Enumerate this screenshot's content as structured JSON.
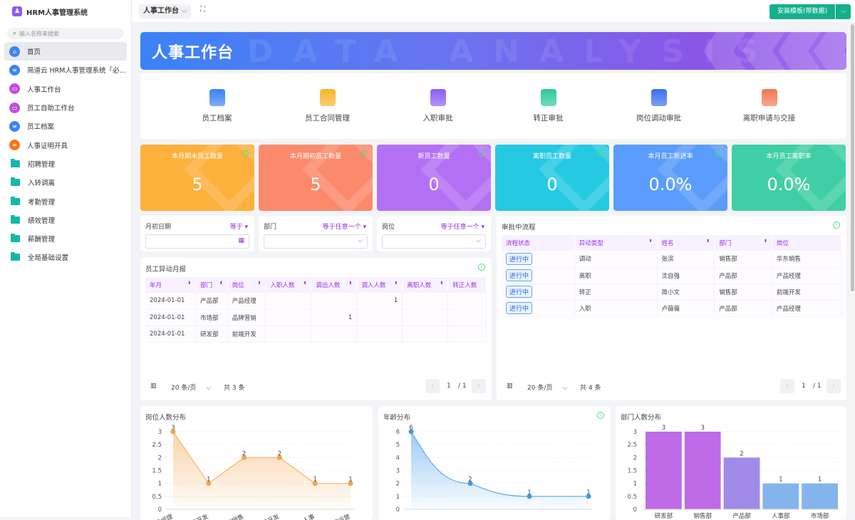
{
  "app": {
    "title": "HRM人事管理系统",
    "search_placeholder": "输入名称来搜索"
  },
  "sidebar": {
    "items": [
      {
        "label": "首页",
        "icon": "home-icon",
        "color": "#3b82f6",
        "active": true
      },
      {
        "label": "简道云 HRM人事管理系统「必...",
        "icon": "document-icon",
        "color": "#3b82f6"
      },
      {
        "label": "人事工作台",
        "icon": "dashboard-icon",
        "color": "#c04ee0"
      },
      {
        "label": "员工自助工作台",
        "icon": "dashboard-icon",
        "color": "#c04ee0"
      },
      {
        "label": "员工档案",
        "icon": "document-icon",
        "color": "#3b82f6"
      },
      {
        "label": "人事证明开具",
        "icon": "document-icon",
        "color": "#f97316"
      },
      {
        "label": "招聘管理",
        "icon": "folder-icon"
      },
      {
        "label": "入转调离",
        "icon": "folder-icon"
      },
      {
        "label": "考勤管理",
        "icon": "folder-icon"
      },
      {
        "label": "绩效管理",
        "icon": "folder-icon"
      },
      {
        "label": "薪酬管理",
        "icon": "folder-icon"
      },
      {
        "label": "全局基础设置",
        "icon": "folder-icon"
      }
    ]
  },
  "topbar": {
    "breadcrumb": "人事工作台",
    "install_label": "安装模板(带数据)"
  },
  "banner": {
    "title": "人事工作台",
    "watermark": "DATA ANALYSIS"
  },
  "shortcuts": [
    {
      "label": "员工档案",
      "color": "#3b82f6"
    },
    {
      "label": "员工合同管理",
      "color": "#f5b52b"
    },
    {
      "label": "入职审批",
      "color": "#8b5cf6"
    },
    {
      "label": "转正审批",
      "color": "#2cc9a0"
    },
    {
      "label": "岗位调动审批",
      "color": "#3b6ff0"
    },
    {
      "label": "离职申请与交接",
      "color": "#f07a52"
    }
  ],
  "stats": [
    {
      "label": "本月期末员工数量",
      "value": "5",
      "color": "#fdb03c"
    },
    {
      "label": "本月期初员工数量",
      "value": "5",
      "color": "#fb8a6c"
    },
    {
      "label": "新员工数量",
      "value": "0",
      "color": "#b470f4"
    },
    {
      "label": "离职员工数量",
      "value": "0",
      "color": "#26c9e2"
    },
    {
      "label": "本月员工新进率",
      "value": "0.0%",
      "color": "#5a9cfb"
    },
    {
      "label": "本月员工离职率",
      "value": "0.0%",
      "color": "#3fcfa4"
    }
  ],
  "filters": [
    {
      "label": "月初日期",
      "operator": "等于",
      "icon": "calendar-icon"
    },
    {
      "label": "部门",
      "operator": "等于任意一个",
      "icon": "chevron-down-icon"
    },
    {
      "label": "岗位",
      "operator": "等于任意一个",
      "icon": "chevron-down-icon"
    }
  ],
  "monthly_report": {
    "title": "员工异动月报",
    "columns": [
      "年月",
      "部门",
      "岗位",
      "入职人数",
      "调出人数",
      "调入人数",
      "离职人数",
      "转正人数"
    ],
    "rows": [
      [
        "2024-01-01",
        "产品部",
        "产品经理",
        "",
        "",
        "1",
        "",
        ""
      ],
      [
        "2024-01-01",
        "市场部",
        "品牌营销",
        "",
        "1",
        "",
        "",
        ""
      ],
      [
        "2024-01-01",
        "研发部",
        "前端开发",
        "",
        "",
        "",
        "",
        ""
      ]
    ],
    "page_size": "20 条/页",
    "total": "共 3 条",
    "page": "1",
    "pages": "/ 1"
  },
  "approvals": {
    "title": "审批中流程",
    "columns": [
      "流程状态",
      "异动类型",
      "姓名",
      "部门",
      "岗位"
    ],
    "rows": [
      [
        "进行中",
        "调动",
        "张滨",
        "销售部",
        "华东销售"
      ],
      [
        "进行中",
        "离职",
        "沈自强",
        "产品部",
        "产品经理"
      ],
      [
        "进行中",
        "转正",
        "简小文",
        "销售部",
        "前端开发"
      ],
      [
        "进行中",
        "入职",
        "卢薇薇",
        "产品部",
        "产品经理"
      ]
    ],
    "page_size": "20 条/页",
    "total": "共 4 条",
    "page": "1",
    "pages": "/ 1"
  },
  "chart_data": [
    {
      "type": "area",
      "title": "岗位人数分布",
      "categories": [
        "产品经理",
        "前端开发",
        "华东销售",
        "后端开发",
        "人事",
        "品牌运营"
      ],
      "values": [
        3,
        1,
        2,
        2,
        1,
        1
      ],
      "ylim": [
        0,
        3
      ],
      "yticks": [
        0,
        0.5,
        1,
        1.5,
        2,
        2.5,
        3
      ],
      "color": "#f5b56b",
      "grid": true
    },
    {
      "type": "area",
      "title": "年龄分布",
      "values": [
        6,
        2,
        1,
        1
      ],
      "ylim": [
        0,
        6
      ],
      "yticks": [
        0,
        1,
        2,
        3,
        4,
        5,
        6
      ],
      "color": "#5aa9ee",
      "smooth": true,
      "grid": true
    },
    {
      "type": "bar",
      "title": "部门人数分布",
      "categories": [
        "研发部",
        "销售部",
        "产品部",
        "人事部",
        "市场部"
      ],
      "values": [
        3,
        3,
        2,
        1,
        1
      ],
      "ylim": [
        0,
        3
      ],
      "yticks": [
        0,
        0.5,
        1,
        1.5,
        2,
        2.5,
        3
      ],
      "colors": [
        "#bf6be8",
        "#bf6be8",
        "#a08be8",
        "#84b4ec",
        "#84b4ec"
      ],
      "grid": true
    }
  ]
}
